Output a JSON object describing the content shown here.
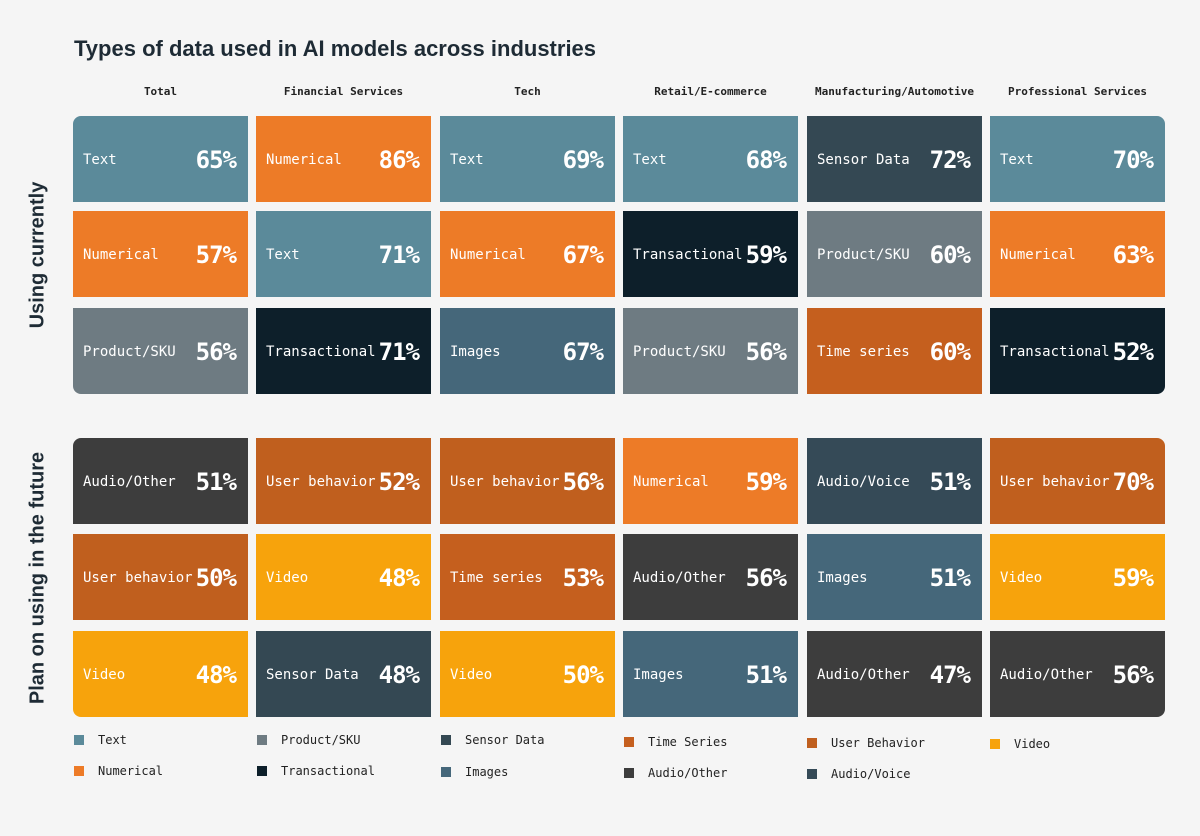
{
  "chart_data": {
    "type": "table",
    "title": "Types of data used in AI models across industries",
    "columns": [
      "Total",
      "Financial Services",
      "Tech",
      "Retail/E-commerce",
      "Manufacturing/Automotive",
      "Professional Services"
    ],
    "rows": [
      "Using currently",
      "Plan on using in the future"
    ],
    "cells": [
      [
        [
          {
            "label": "Text",
            "value": "65%",
            "category": "Text"
          },
          {
            "label": "Numerical",
            "value": "57%",
            "category": "Numerical"
          },
          {
            "label": "Product/SKU",
            "value": "56%",
            "category": "Product/SKU"
          }
        ],
        [
          {
            "label": "Numerical",
            "value": "86%",
            "category": "Numerical"
          },
          {
            "label": "Text",
            "value": "71%",
            "category": "Text"
          },
          {
            "label": "Transactional",
            "value": "71%",
            "category": "Transactional"
          }
        ],
        [
          {
            "label": "Text",
            "value": "69%",
            "category": "Text"
          },
          {
            "label": "Numerical",
            "value": "67%",
            "category": "Numerical"
          },
          {
            "label": "Images",
            "value": "67%",
            "category": "Images"
          }
        ],
        [
          {
            "label": "Text",
            "value": "68%",
            "category": "Text"
          },
          {
            "label": "Transactional",
            "value": "59%",
            "category": "Transactional"
          },
          {
            "label": "Product/SKU",
            "value": "56%",
            "category": "Product/SKU"
          }
        ],
        [
          {
            "label": "Sensor Data",
            "value": "72%",
            "category": "Sensor Data"
          },
          {
            "label": "Product/SKU",
            "value": "60%",
            "category": "Product/SKU"
          },
          {
            "label": "Time series",
            "value": "60%",
            "category": "Time Series"
          }
        ],
        [
          {
            "label": "Text",
            "value": "70%",
            "category": "Text"
          },
          {
            "label": "Numerical",
            "value": "63%",
            "category": "Numerical"
          },
          {
            "label": "Transactional",
            "value": "52%",
            "category": "Transactional"
          }
        ]
      ],
      [
        [
          {
            "label": "Audio/Other",
            "value": "51%",
            "category": "Audio/Other"
          },
          {
            "label": "User behavior",
            "value": "50%",
            "category": "User Behavior"
          },
          {
            "label": "Video",
            "value": "48%",
            "category": "Video"
          }
        ],
        [
          {
            "label": "User behavior",
            "value": "52%",
            "category": "User Behavior"
          },
          {
            "label": "Video",
            "value": "48%",
            "category": "Video"
          },
          {
            "label": "Sensor Data",
            "value": "48%",
            "category": "Sensor Data"
          }
        ],
        [
          {
            "label": "User behavior",
            "value": "56%",
            "category": "User Behavior"
          },
          {
            "label": "Time series",
            "value": "53%",
            "category": "Time Series"
          },
          {
            "label": "Video",
            "value": "50%",
            "category": "Video"
          }
        ],
        [
          {
            "label": "Numerical",
            "value": "59%",
            "category": "Numerical"
          },
          {
            "label": "Audio/Other",
            "value": "56%",
            "category": "Audio/Other"
          },
          {
            "label": "Images",
            "value": "51%",
            "category": "Images"
          }
        ],
        [
          {
            "label": "Audio/Voice",
            "value": "51%",
            "category": "Audio/Voice"
          },
          {
            "label": "Images",
            "value": "51%",
            "category": "Images"
          },
          {
            "label": "Audio/Other",
            "value": "47%",
            "category": "Audio/Other"
          }
        ],
        [
          {
            "label": "User behavior",
            "value": "70%",
            "category": "User Behavior"
          },
          {
            "label": "Video",
            "value": "59%",
            "category": "Video"
          },
          {
            "label": "Audio/Other",
            "value": "56%",
            "category": "Audio/Other"
          }
        ]
      ]
    ],
    "legend": [
      {
        "label": "Text",
        "color": "#5b8a9a"
      },
      {
        "label": "Numerical",
        "color": "#ed7b27"
      },
      {
        "label": "Product/SKU",
        "color": "#6e7b82"
      },
      {
        "label": "Transactional",
        "color": "#0d1f2a"
      },
      {
        "label": "Sensor Data",
        "color": "#344853"
      },
      {
        "label": "Images",
        "color": "#45677a"
      },
      {
        "label": "Time Series",
        "color": "#c55f1e"
      },
      {
        "label": "Audio/Other",
        "color": "#3d3d3d"
      },
      {
        "label": "User Behavior",
        "color": "#c05f1e"
      },
      {
        "label": "Audio/Voice",
        "color": "#354a57"
      },
      {
        "label": "Video",
        "color": "#f7a30c"
      }
    ]
  }
}
